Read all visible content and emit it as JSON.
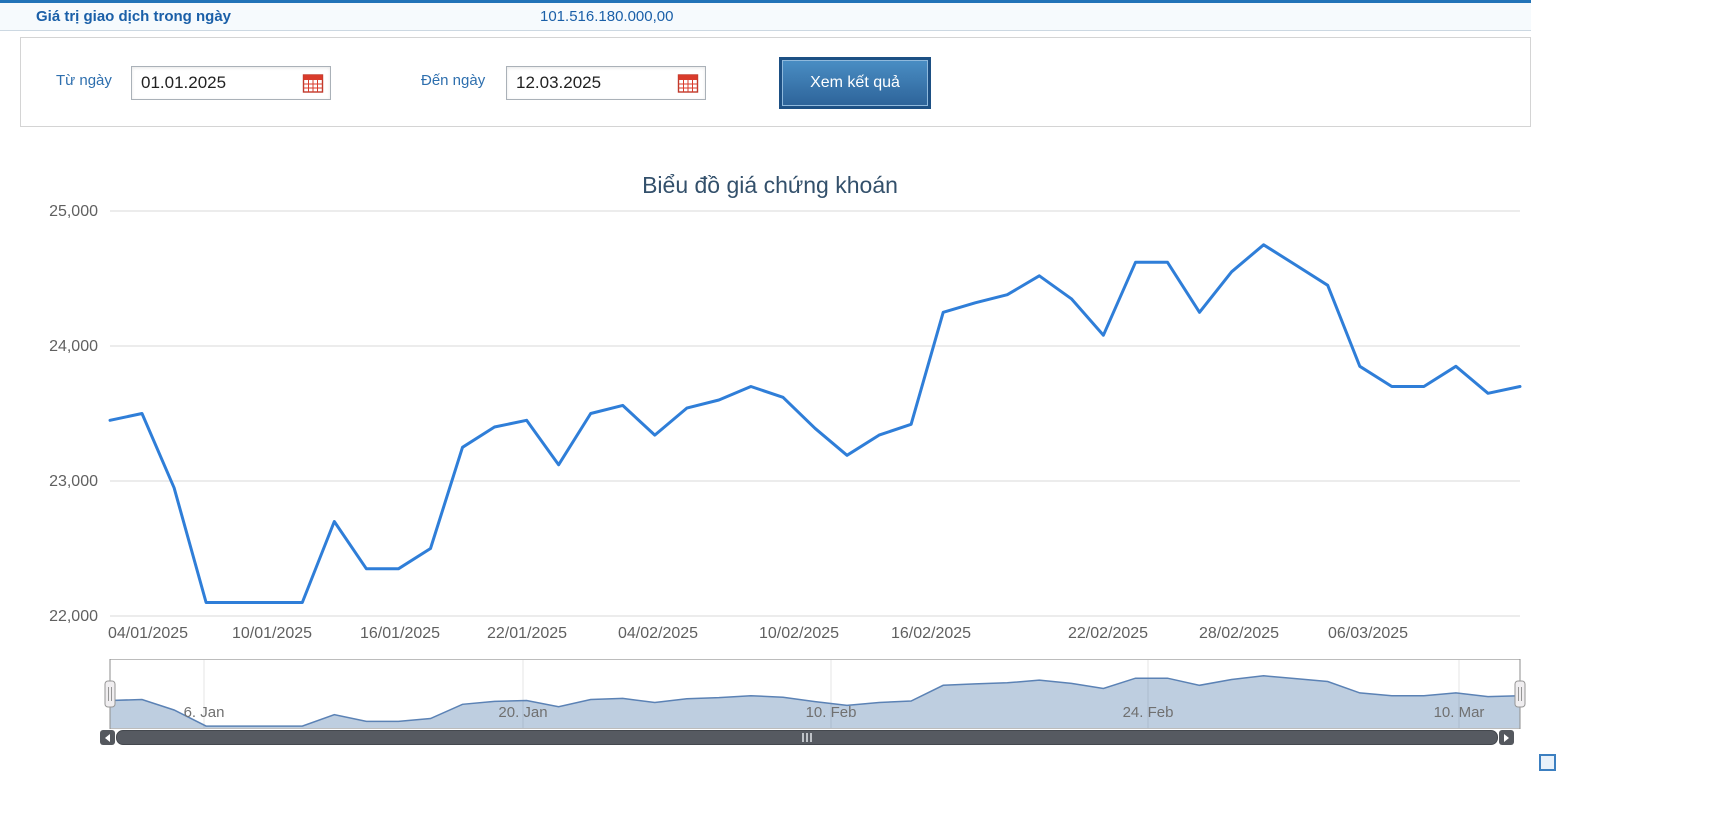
{
  "topbar": {
    "label": "Giá trị giao dịch trong ngày",
    "value": "101.516.180.000,00"
  },
  "filters": {
    "from_label": "Từ ngày",
    "from_value": "01.01.2025",
    "to_label": "Đến ngày",
    "to_value": "12.03.2025",
    "submit_label": "Xem kết quả"
  },
  "chart_data": {
    "type": "line",
    "title": "Biểu đồ giá chứng khoán",
    "xlabel": "",
    "ylabel": "",
    "ylim": [
      22000,
      25000
    ],
    "grid": true,
    "line_color": "#2f7ed8",
    "grid_color": "#d9d9d9",
    "axis_label_color": "#606060",
    "yticks": [
      {
        "value": 25000,
        "label": "25,000"
      },
      {
        "value": 24000,
        "label": "24,000"
      },
      {
        "value": 23000,
        "label": "23,000"
      },
      {
        "value": 22000,
        "label": "22,000"
      }
    ],
    "xticks": [
      {
        "label": "04/01/2025",
        "pos": 0.027
      },
      {
        "label": "10/01/2025",
        "pos": 0.115
      },
      {
        "label": "16/01/2025",
        "pos": 0.206
      },
      {
        "label": "22/01/2025",
        "pos": 0.296
      },
      {
        "label": "04/02/2025",
        "pos": 0.389
      },
      {
        "label": "10/02/2025",
        "pos": 0.489
      },
      {
        "label": "16/02/2025",
        "pos": 0.582
      },
      {
        "label": "22/02/2025",
        "pos": 0.708
      },
      {
        "label": "28/02/2025",
        "pos": 0.801
      },
      {
        "label": "06/03/2025",
        "pos": 0.892
      }
    ],
    "x": [
      "02/01/2025",
      "03/01/2025",
      "06/01/2025",
      "07/01/2025",
      "08/01/2025",
      "09/01/2025",
      "10/01/2025",
      "13/01/2025",
      "14/01/2025",
      "15/01/2025",
      "16/01/2025",
      "17/01/2025",
      "20/01/2025",
      "21/01/2025",
      "22/01/2025",
      "23/01/2025",
      "24/01/2025",
      "03/02/2025",
      "04/02/2025",
      "05/02/2025",
      "06/02/2025",
      "07/02/2025",
      "10/02/2025",
      "11/02/2025",
      "12/02/2025",
      "13/02/2025",
      "14/02/2025",
      "17/02/2025",
      "18/02/2025",
      "19/02/2025",
      "20/02/2025",
      "21/02/2025",
      "24/02/2025",
      "25/02/2025",
      "26/02/2025",
      "27/02/2025",
      "28/02/2025",
      "03/03/2025",
      "04/03/2025",
      "05/03/2025",
      "06/03/2025",
      "07/03/2025",
      "10/03/2025",
      "11/03/2025",
      "12/03/2025"
    ],
    "values": [
      23450,
      23500,
      22950,
      22100,
      22100,
      22100,
      22100,
      22700,
      22350,
      22350,
      22500,
      23250,
      23400,
      23450,
      23120,
      23500,
      23560,
      23340,
      23540,
      23600,
      23700,
      23620,
      23390,
      23190,
      23340,
      23420,
      24250,
      24320,
      24380,
      24520,
      24350,
      24080,
      24620,
      24620,
      24250,
      24550,
      24750,
      24600,
      24450,
      23850,
      23700,
      23700,
      23850,
      23650,
      23700
    ],
    "navigator": {
      "fill_color": "rgba(69,114,167,0.35)",
      "line_color": "#5b82b5",
      "outline_color": "#bcbcbc",
      "labels": [
        {
          "label": "6. Jan",
          "pos": 0.067
        },
        {
          "label": "20. Jan",
          "pos": 0.293
        },
        {
          "label": "10. Feb",
          "pos": 0.511
        },
        {
          "label": "24. Feb",
          "pos": 0.736
        },
        {
          "label": "10. Mar",
          "pos": 0.957
        }
      ]
    }
  }
}
